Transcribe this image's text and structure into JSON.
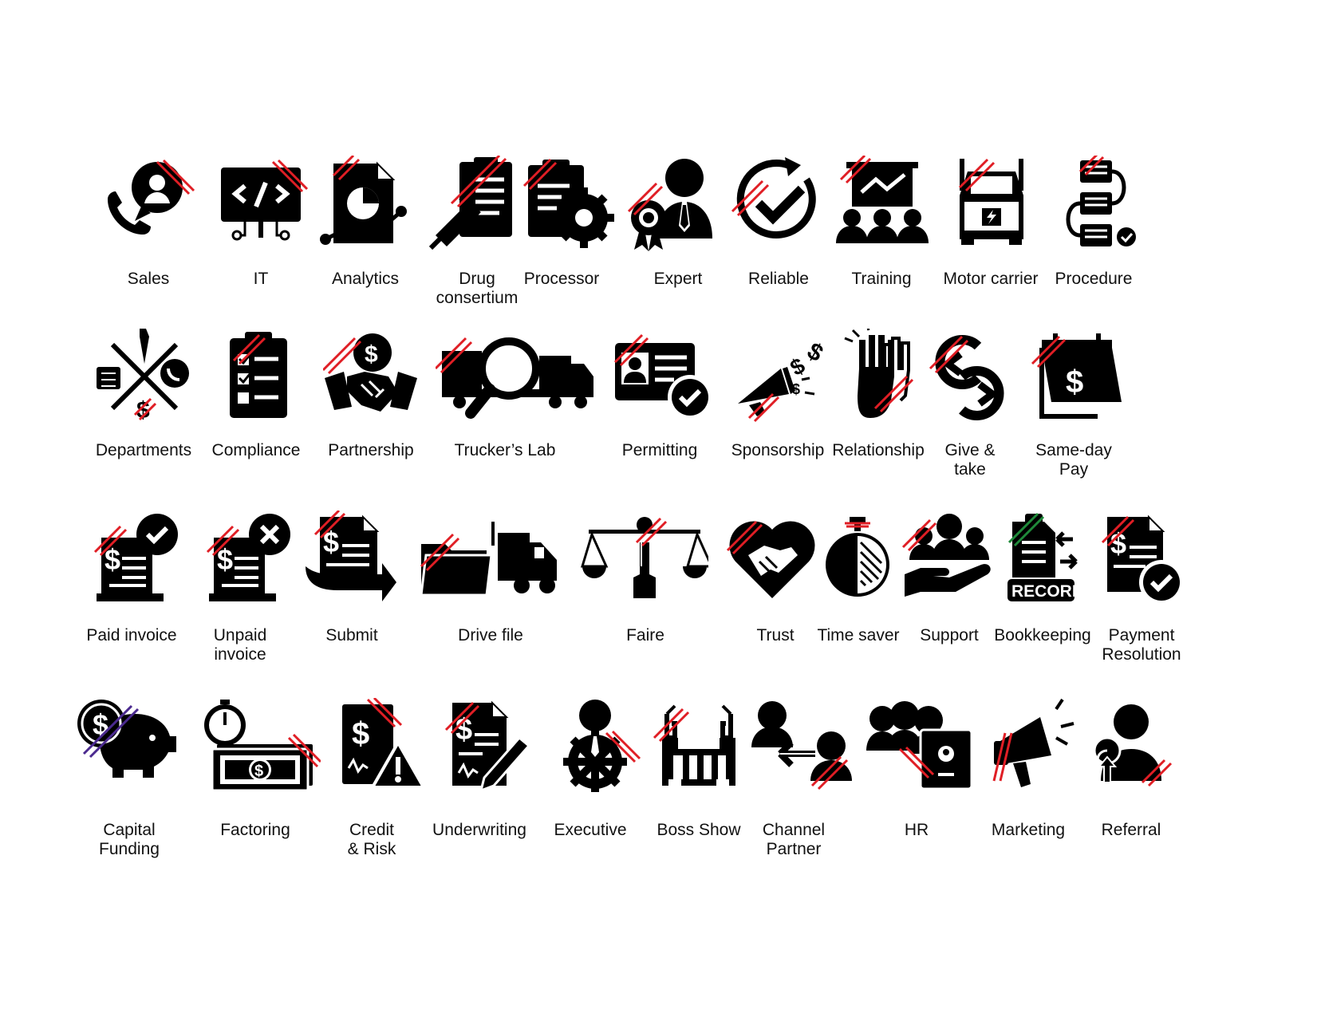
{
  "colors": {
    "ink": "#000000",
    "slash_red": "#e01e25",
    "slash_green": "#1f8a3a",
    "slash_purple": "#4b2a8f",
    "label": "#111111"
  },
  "rows": [
    [
      {
        "label": "Sales",
        "icon": "headset-phone-icon"
      },
      {
        "label": "IT",
        "icon": "code-monitor-icon"
      },
      {
        "label": "Analytics",
        "icon": "report-chart-icon"
      },
      {
        "label": "Drug\nconsertium",
        "icon": "syringe-clipboard-icon"
      },
      {
        "label": "Processor",
        "icon": "clipboard-gear-icon"
      },
      {
        "label": "Expert",
        "icon": "person-award-icon"
      },
      {
        "label": "Reliable",
        "icon": "refresh-check-icon"
      },
      {
        "label": "Training",
        "icon": "presentation-group-icon"
      },
      {
        "label": "Motor carrier",
        "icon": "truck-engine-icon"
      },
      {
        "label": "Procedure",
        "icon": "flow-steps-icon"
      }
    ],
    [
      {
        "label": "Departments",
        "icon": "departments-cross-icon"
      },
      {
        "label": "Compliance",
        "icon": "checklist-clipboard-icon"
      },
      {
        "label": "Partnership",
        "icon": "handshake-coin-icon"
      },
      {
        "label": "Trucker’s Lab",
        "icon": "truck-magnifier-icon"
      },
      {
        "label": "Permitting",
        "icon": "id-card-check-icon"
      },
      {
        "label": "Sponsorship",
        "icon": "megaphone-money-icon"
      },
      {
        "label": "Relationship",
        "icon": "high-five-icon"
      },
      {
        "label": "Give &\ntake",
        "icon": "exchange-arrows-icon"
      },
      {
        "label": "Same-day\nPay",
        "icon": "calendar-dollar-icon"
      }
    ],
    [
      {
        "label": "Paid invoice",
        "icon": "invoice-check-icon"
      },
      {
        "label": "Unpaid\ninvoice",
        "icon": "invoice-x-icon"
      },
      {
        "label": "Submit",
        "icon": "invoice-arrow-icon"
      },
      {
        "label": "Drive file",
        "icon": "folder-truck-icon"
      },
      {
        "label": "Faire",
        "icon": "scales-icon"
      },
      {
        "label": "Trust",
        "icon": "heart-handshake-icon"
      },
      {
        "label": "Time saver",
        "icon": "stopwatch-icon"
      },
      {
        "label": "Support",
        "icon": "hand-group-icon"
      },
      {
        "label": "Bookkeeping",
        "icon": "record-book-icon"
      },
      {
        "label": "Payment\nResolution",
        "icon": "invoice-resolved-icon"
      }
    ],
    [
      {
        "label": "Capital\nFunding",
        "icon": "piggy-bank-icon"
      },
      {
        "label": "Factoring",
        "icon": "cash-timer-icon"
      },
      {
        "label": "Credit\n& Risk",
        "icon": "document-warning-icon"
      },
      {
        "label": "Underwriting",
        "icon": "document-pen-icon"
      },
      {
        "label": "Executive",
        "icon": "executive-gear-icon"
      },
      {
        "label": "Boss Show",
        "icon": "boss-show-icon"
      },
      {
        "label": "Channel\nPartner",
        "icon": "people-exchange-icon"
      },
      {
        "label": "HR",
        "icon": "team-badge-icon"
      },
      {
        "label": "Marketing",
        "icon": "megaphone-icon"
      },
      {
        "label": "Referral",
        "icon": "people-up-arrow-icon"
      }
    ]
  ]
}
